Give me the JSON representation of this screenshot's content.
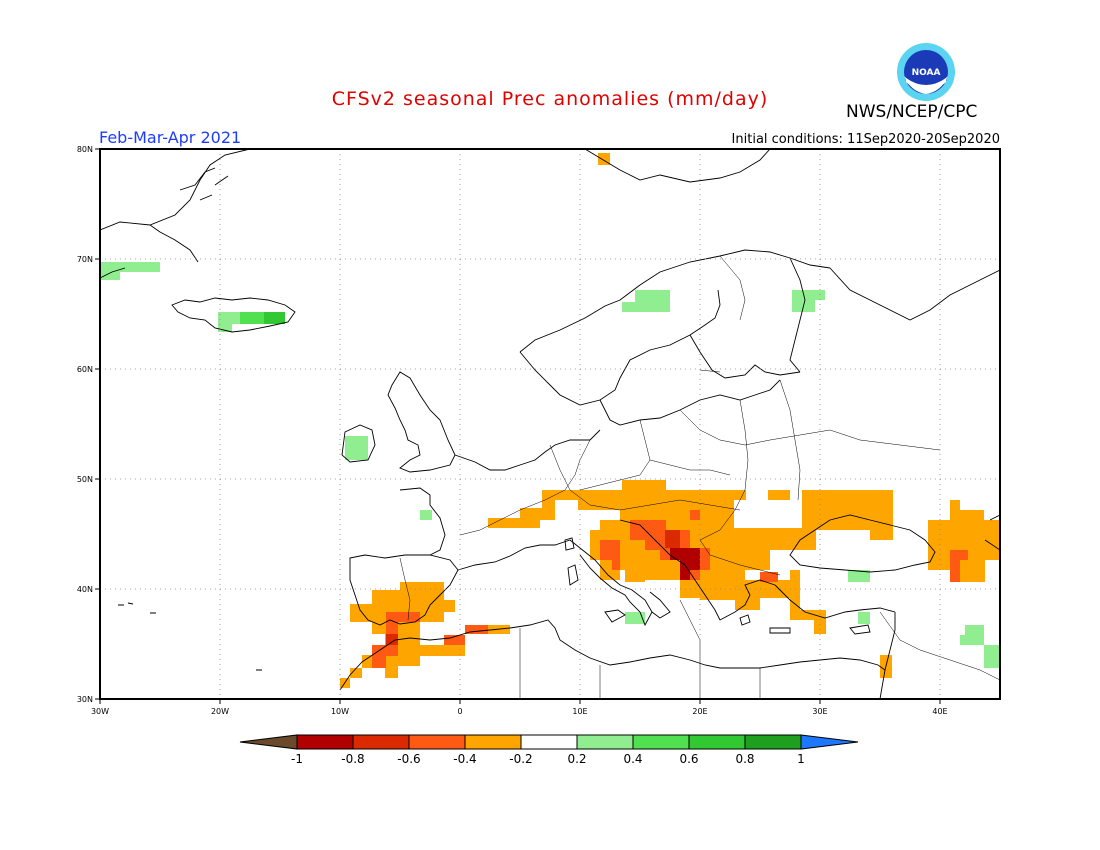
{
  "title": "CFSv2 seasonal Prec anomalies (mm/day)",
  "agency": "NWS/NCEP/CPC",
  "logo_text": "NOAA",
  "period": "Feb-Mar-Apr 2021",
  "initial_conditions": "Initial conditions: 11Sep2020-20Sep2020",
  "lat_ticks": [
    "80N",
    "70N",
    "60N",
    "50N",
    "40N",
    "30N"
  ],
  "lon_ticks": [
    "30W",
    "20W",
    "10W",
    "0",
    "10E",
    "20E",
    "30E",
    "40E"
  ],
  "colorbar": {
    "labels": [
      "-1",
      "-0.8",
      "-0.6",
      "-0.4",
      "-0.2",
      "0.2",
      "0.4",
      "0.6",
      "0.8",
      "1"
    ],
    "colors": {
      "below_min": "#6b4a2c",
      "bins": [
        "#b00000",
        "#dc2a00",
        "#ff5a14",
        "#ffa500",
        "#ffffff",
        "#90ee90",
        "#50e050",
        "#32c832",
        "#1ea01e"
      ],
      "above_max": "#1e78ff"
    }
  },
  "colors": {
    "title": "#e00000",
    "period": "#1e3cff",
    "gridlines": "#888888",
    "coastline": "#000000"
  }
}
